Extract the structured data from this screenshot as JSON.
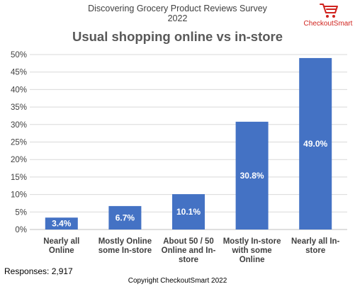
{
  "header": {
    "survey_title_line1": "Discovering Grocery Product Reviews Survey",
    "survey_title_line2": "2022",
    "logo_text": "CheckoutSmart"
  },
  "colors": {
    "bar": "#4472c4",
    "logo": "#d0231e",
    "grid": "#d9d9d9"
  },
  "chart_data": {
    "type": "bar",
    "title": "Usual shopping online vs in-store",
    "categories": [
      [
        "Nearly all",
        "Online"
      ],
      [
        "Mostly Online",
        "some In-store"
      ],
      [
        "About 50 / 50",
        "Online and In-",
        "store"
      ],
      [
        "Mostly In-store",
        "with some",
        "Online"
      ],
      [
        "Nearly all In-",
        "store"
      ]
    ],
    "values": [
      3.4,
      6.7,
      10.1,
      30.8,
      49.0
    ],
    "data_labels": [
      "3.4%",
      "6.7%",
      "10.1%",
      "30.8%",
      "49.0%"
    ],
    "ylim": [
      0,
      50
    ],
    "yticks": [
      "0%",
      "5%",
      "10%",
      "15%",
      "20%",
      "25%",
      "30%",
      "35%",
      "40%",
      "45%",
      "50%"
    ],
    "grid": true,
    "legend": "none"
  },
  "footer": {
    "responses": "Responses: 2,917",
    "copyright": "Copyright CheckoutSmart 2022"
  }
}
